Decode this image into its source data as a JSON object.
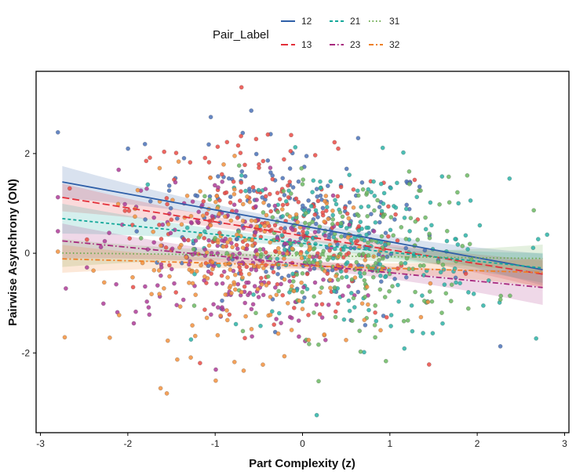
{
  "chart_data": {
    "type": "scatter",
    "xlabel": "Part Complexity (z)",
    "ylabel": "Pairwise Asynchrony (ON)",
    "xlim": [
      -3.05,
      3.05
    ],
    "ylim": [
      -3.6,
      3.65
    ],
    "x_ticks": [
      "-3",
      "-2",
      "-1",
      "0",
      "1",
      "2",
      "3"
    ],
    "y_ticks": [
      "-2",
      "0",
      "2"
    ],
    "legend": {
      "title": "Pair_Label",
      "placement": "top"
    },
    "series": [
      {
        "name": "12",
        "color": "#2E5FA8",
        "point_color": "#4B72B8",
        "dash": "solid",
        "x_range": [
          -2.75,
          2.75
        ],
        "intercept": 0.55,
        "slope": -0.32,
        "band_halfwidth_end": 0.32,
        "band_halfwidth_center": 0.08,
        "points_x_center": -0.05,
        "points_x_spread": 0.85,
        "points_y_spread": 0.85,
        "n_points": 200
      },
      {
        "name": "13",
        "color": "#E3303A",
        "point_color": "#EA4B45",
        "dash": "longdash",
        "x_range": [
          -2.75,
          2.75
        ],
        "intercept": 0.35,
        "slope": -0.28,
        "band_halfwidth_end": 0.28,
        "band_halfwidth_center": 0.08,
        "points_x_center": -0.35,
        "points_x_spread": 0.8,
        "points_y_spread": 0.85,
        "n_points": 220
      },
      {
        "name": "21",
        "color": "#14A89A",
        "point_color": "#2DB3A7",
        "dash": "dashed",
        "x_range": [
          -2.75,
          2.75
        ],
        "intercept": 0.2,
        "slope": -0.18,
        "band_halfwidth_end": 0.3,
        "band_halfwidth_center": 0.08,
        "points_x_center": 0.65,
        "points_x_spread": 0.85,
        "points_y_spread": 0.85,
        "n_points": 200
      },
      {
        "name": "23",
        "color": "#A7287E",
        "point_color": "#AE3C98",
        "dash": "dashdot",
        "x_range": [
          -2.75,
          2.75
        ],
        "intercept": -0.22,
        "slope": -0.17,
        "band_halfwidth_end": 0.35,
        "band_halfwidth_center": 0.09,
        "points_x_center": -0.85,
        "points_x_spread": 0.75,
        "points_y_spread": 0.8,
        "n_points": 200
      },
      {
        "name": "31",
        "color": "#6BAA4E",
        "point_color": "#6CB963",
        "dash": "dotted",
        "x_range": [
          -2.75,
          2.75
        ],
        "intercept": -0.05,
        "slope": -0.02,
        "band_halfwidth_end": 0.28,
        "band_halfwidth_center": 0.07,
        "points_x_center": 0.55,
        "points_x_spread": 0.8,
        "points_y_spread": 0.8,
        "n_points": 200
      },
      {
        "name": "32",
        "color": "#EE8028",
        "point_color": "#F2913D",
        "dash": "twodash",
        "x_range": [
          -2.75,
          2.75
        ],
        "intercept": -0.25,
        "slope": -0.05,
        "band_halfwidth_end": 0.28,
        "band_halfwidth_center": 0.07,
        "points_x_center": -0.6,
        "points_x_spread": 0.75,
        "points_y_spread": 0.9,
        "n_points": 200
      }
    ]
  }
}
